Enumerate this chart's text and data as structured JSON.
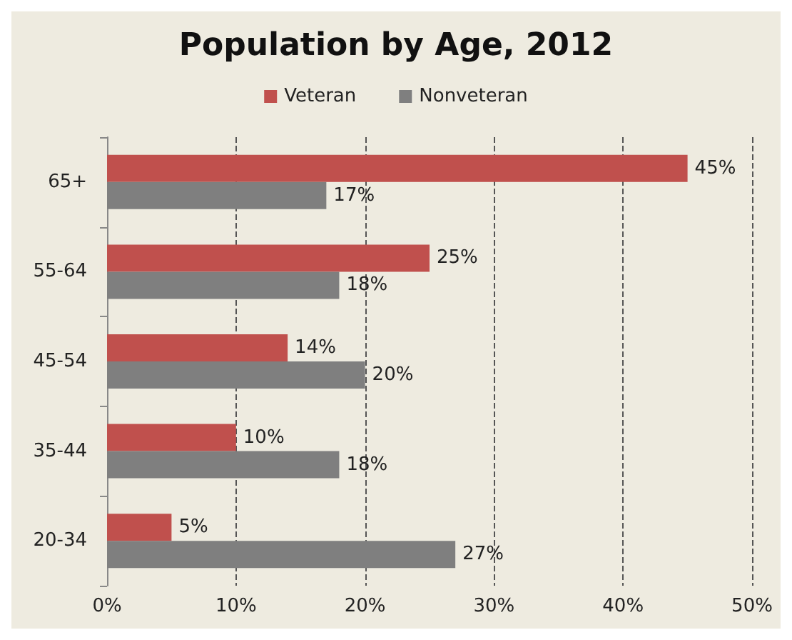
{
  "chart_data": {
    "type": "bar",
    "orientation": "horizontal",
    "title": "Population by Age, 2012",
    "categories": [
      "65+",
      "55-64",
      "45-54",
      "35-44",
      "20-34"
    ],
    "series": [
      {
        "name": "Veteran",
        "color": "#c0504d",
        "values": [
          45,
          25,
          14,
          10,
          5
        ],
        "value_labels": [
          "45%",
          "25%",
          "14%",
          "10%",
          "5%"
        ]
      },
      {
        "name": "Nonveteran",
        "color": "#7f7f7f",
        "values": [
          17,
          18,
          20,
          18,
          27
        ],
        "value_labels": [
          "17%",
          "18%",
          "20%",
          "18%",
          "27%"
        ]
      }
    ],
    "xlim": [
      0,
      50
    ],
    "xticks": [
      {
        "value": 0,
        "label": "0%"
      },
      {
        "value": 10,
        "label": "10%"
      },
      {
        "value": 20,
        "label": "20%"
      },
      {
        "value": 30,
        "label": "30%"
      },
      {
        "value": 40,
        "label": "40%"
      },
      {
        "value": 50,
        "label": "50%"
      }
    ],
    "grid": "x",
    "legend": "top"
  }
}
